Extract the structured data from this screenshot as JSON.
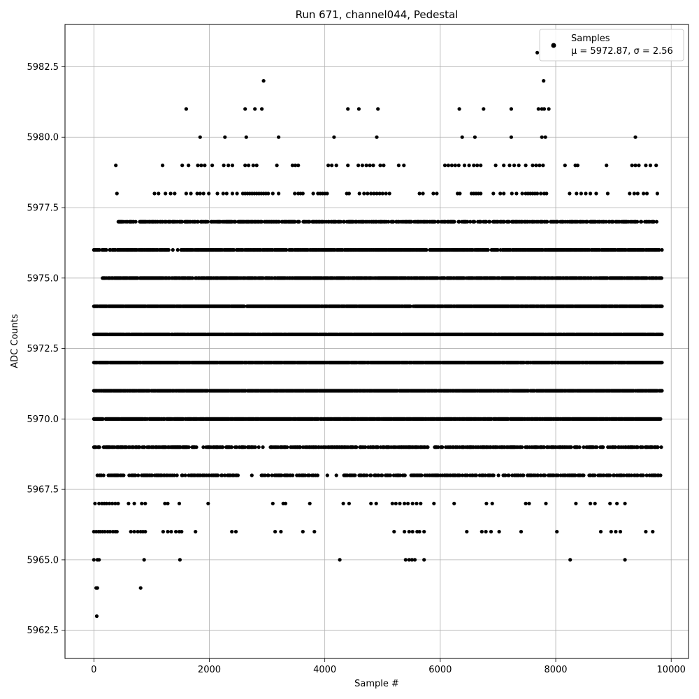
{
  "chart_data": {
    "type": "scatter",
    "title": "Run 671, channel044, Pedestal",
    "xlabel": "Sample #",
    "ylabel": "ADC Counts",
    "xlim": [
      -500,
      10300
    ],
    "ylim": [
      5961.5,
      5984.0
    ],
    "xticks": [
      0,
      2000,
      4000,
      6000,
      8000,
      10000
    ],
    "yticks": [
      5962.5,
      5965.0,
      5967.5,
      5970.0,
      5972.5,
      5975.0,
      5977.5,
      5980.0,
      5982.5
    ],
    "xtick_labels": [
      "0",
      "2000",
      "4000",
      "6000",
      "8000",
      "10000"
    ],
    "ytick_labels": [
      "5962.5",
      "5965.0",
      "5967.5",
      "5970.0",
      "5972.5",
      "5975.0",
      "5977.5",
      "5980.0",
      "5982.5"
    ],
    "grid": true,
    "legend_placement": "top-right",
    "marker_color": "#000000",
    "series": [
      {
        "name": "Samples",
        "annotation": "μ = 5972.87, σ = 2.56",
        "bands": [
          {
            "y": 5963,
            "x": [
              50
            ]
          },
          {
            "y": 5964,
            "x": [
              40,
              60,
              810
            ]
          },
          {
            "y": 5965,
            "x": [
              0,
              60,
              90,
              870,
              1490,
              4260,
              5400,
              5460,
              5510,
              5560,
              5720,
              8250,
              9200
            ]
          },
          {
            "y": 5966,
            "x": [
              0,
              40,
              80,
              110,
              150,
              190,
              240,
              280,
              330,
              370,
              400,
              640,
              700,
              760,
              810,
              850,
              890,
              1200,
              1280,
              1340,
              1420,
              1480,
              1520,
              1760,
              2390,
              2460,
              3140,
              3240,
              3620,
              3820,
              5200,
              5380,
              5460,
              5520,
              5600,
              5640,
              5720,
              6460,
              6720,
              6790,
              6880,
              7020,
              7400,
              8020,
              8780,
              8960,
              9040,
              9120,
              9560,
              9680
            ]
          },
          {
            "y": 5967,
            "x": [
              20,
              90,
              140,
              180,
              220,
              270,
              320,
              370,
              420,
              600,
              700,
              830,
              890,
              1230,
              1280,
              1480,
              1980,
              3100,
              3280,
              3320,
              3740,
              4320,
              4420,
              4800,
              4890,
              5170,
              5230,
              5300,
              5380,
              5440,
              5520,
              5590,
              5660,
              5890,
              6240,
              6800,
              6900,
              7480,
              7540,
              7830,
              8350,
              8600,
              8680,
              8940,
              9060,
              9200
            ]
          }
        ],
        "dense_bands": [
          {
            "y": 5968,
            "x_range": [
              0,
              9820
            ],
            "density": 0.45,
            "gaps": [
              [
                2500,
                2900
              ],
              [
                3900,
                4300
              ]
            ]
          },
          {
            "y": 5969,
            "x_range": [
              0,
              9840
            ],
            "density": 0.55,
            "gaps": [
              [
                1780,
                1950
              ],
              [
                2900,
                3050
              ]
            ]
          },
          {
            "y": 5970,
            "x_range": [
              0,
              9840
            ],
            "density": 0.9,
            "gaps": []
          },
          {
            "y": 5971,
            "x_range": [
              0,
              9840
            ],
            "density": 0.9,
            "gaps": []
          },
          {
            "y": 5972,
            "x_range": [
              0,
              9840
            ],
            "density": 0.95,
            "gaps": []
          },
          {
            "y": 5973,
            "x_range": [
              0,
              9840
            ],
            "density": 0.95,
            "gaps": []
          },
          {
            "y": 5974,
            "x_range": [
              0,
              9840
            ],
            "density": 0.95,
            "gaps": []
          },
          {
            "y": 5975,
            "x_range": [
              150,
              9840
            ],
            "density": 0.85,
            "gaps": []
          },
          {
            "y": 5976,
            "x_range": [
              0,
              9840
            ],
            "density": 0.75,
            "gaps": [
              [
                1300,
                1500
              ]
            ]
          },
          {
            "y": 5977,
            "x_range": [
              400,
              9780
            ],
            "density": 0.6,
            "gaps": []
          }
        ],
        "sparse_upper": [
          {
            "y": 5978,
            "x": [
              400,
              1050,
              1120,
              1240,
              1330,
              1400,
              1600,
              1680,
              1790,
              1840,
              1900,
              1990,
              2140,
              2240,
              2300,
              2400,
              2480,
              2580,
              2620,
              2660,
              2700,
              2740,
              2780,
              2820,
              2860,
              2900,
              2940,
              2980,
              3020,
              3100,
              3200,
              3480,
              3540,
              3580,
              3620,
              3800,
              3880,
              3920,
              3960,
              4000,
              4040,
              4380,
              4420,
              4600,
              4680,
              4740,
              4800,
              4850,
              4900,
              4950,
              5000,
              5060,
              5120,
              5640,
              5700,
              5880,
              5940,
              6300,
              6340,
              6540,
              6580,
              6620,
              6660,
              6700,
              6920,
              7040,
              7100,
              7240,
              7320,
              7420,
              7480,
              7520,
              7560,
              7600,
              7640,
              7680,
              7740,
              7800,
              7840,
              8240,
              8360,
              8440,
              8520,
              8600,
              8700,
              8900,
              9280,
              9360,
              9420,
              9520,
              9580,
              9760
            ]
          },
          {
            "y": 5979,
            "x": [
              380,
              1190,
              1530,
              1640,
              1800,
              1860,
              1920,
              2050,
              2250,
              2330,
              2400,
              2620,
              2680,
              2760,
              2820,
              3170,
              3440,
              3490,
              3540,
              4060,
              4120,
              4200,
              4400,
              4580,
              4650,
              4720,
              4780,
              4840,
              4960,
              5020,
              5280,
              5370,
              6080,
              6140,
              6200,
              6260,
              6320,
              6420,
              6500,
              6580,
              6640,
              6700,
              6960,
              7100,
              7200,
              7280,
              7360,
              7480,
              7600,
              7660,
              7720,
              7780,
              8160,
              8340,
              8380,
              8880,
              9320,
              9380,
              9440,
              9560,
              9640,
              9740
            ]
          },
          {
            "y": 5980,
            "x": [
              1840,
              2270,
              2640,
              3200,
              4160,
              4900,
              6380,
              6600,
              7230,
              7760,
              7820,
              9380
            ]
          },
          {
            "y": 5981,
            "x": [
              1600,
              2620,
              2790,
              2910,
              4400,
              4590,
              4920,
              6330,
              6750,
              7230,
              7700,
              7760,
              7800,
              7880
            ]
          },
          {
            "y": 5982,
            "x": [
              2940,
              7790
            ]
          },
          {
            "y": 5983,
            "x": [
              7680
            ]
          }
        ]
      }
    ]
  }
}
